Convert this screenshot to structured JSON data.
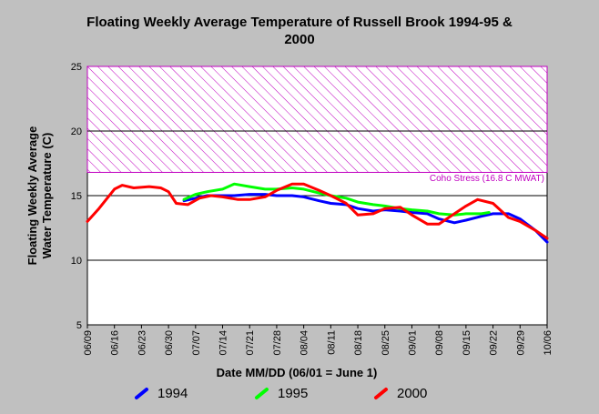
{
  "chart_data": {
    "type": "line",
    "title_line1": "Floating Weekly Average Temperature of Russell Brook 1994-95 &",
    "title_line2": "2000",
    "xlabel": "Date MM/DD (06/01 = June 1)",
    "ylabel_line1": "Floating Weekly Average",
    "ylabel_line2": "Water Temperature (C)",
    "ylim": [
      5,
      25
    ],
    "yticks": [
      5,
      10,
      15,
      20,
      25
    ],
    "grid_y": [
      10,
      15,
      20
    ],
    "x_start": "06/09",
    "x_end": "10/06",
    "xticks": [
      "06/09",
      "06/16",
      "06/23",
      "06/30",
      "07/07",
      "07/14",
      "07/21",
      "07/28",
      "08/04",
      "08/11",
      "08/18",
      "08/25",
      "09/01",
      "09/08",
      "09/15",
      "09/22",
      "09/29",
      "10/06"
    ],
    "annotation": {
      "label": "Coho Stress (16.8 C MWAT)",
      "y_low": 16.8,
      "y_high": 25,
      "x_from": "06/09",
      "x_to": "10/06",
      "color": "#c000c0"
    },
    "series": [
      {
        "name": "1994",
        "color": "#0000ff",
        "x": [
          "07/04",
          "07/07",
          "07/10",
          "07/14",
          "07/17",
          "07/21",
          "07/25",
          "07/28",
          "08/01",
          "08/04",
          "08/08",
          "08/11",
          "08/15",
          "08/18",
          "08/22",
          "08/25",
          "08/29",
          "09/01",
          "09/05",
          "09/08",
          "09/12",
          "09/15",
          "09/19",
          "09/22",
          "09/26",
          "09/29",
          "10/03",
          "10/06"
        ],
        "values": [
          14.6,
          14.8,
          15.0,
          15.0,
          15.0,
          15.1,
          15.1,
          15.0,
          15.0,
          14.9,
          14.6,
          14.4,
          14.3,
          14.0,
          13.8,
          13.9,
          13.8,
          13.7,
          13.6,
          13.2,
          12.9,
          13.1,
          13.4,
          13.6,
          13.6,
          13.2,
          12.3,
          11.4
        ]
      },
      {
        "name": "1995",
        "color": "#00ff00",
        "x": [
          "07/04",
          "07/07",
          "07/10",
          "07/14",
          "07/17",
          "07/21",
          "07/25",
          "07/28",
          "08/01",
          "08/04",
          "08/08",
          "08/11",
          "08/15",
          "08/18",
          "08/22",
          "08/25",
          "08/29",
          "09/01",
          "09/05",
          "09/08",
          "09/12",
          "09/15",
          "09/19",
          "09/21"
        ],
        "values": [
          14.7,
          15.1,
          15.3,
          15.5,
          15.9,
          15.7,
          15.5,
          15.5,
          15.6,
          15.5,
          15.2,
          15.0,
          14.8,
          14.5,
          14.3,
          14.2,
          14.0,
          13.9,
          13.8,
          13.6,
          13.5,
          13.6,
          13.6,
          13.7
        ]
      },
      {
        "name": "2000",
        "color": "#ff0000",
        "x": [
          "06/09",
          "06/12",
          "06/16",
          "06/18",
          "06/21",
          "06/25",
          "06/28",
          "06/30",
          "07/02",
          "07/05",
          "07/08",
          "07/11",
          "07/14",
          "07/18",
          "07/21",
          "07/25",
          "07/28",
          "08/01",
          "08/04",
          "08/08",
          "08/11",
          "08/15",
          "08/18",
          "08/22",
          "08/25",
          "08/29",
          "09/01",
          "09/05",
          "09/08",
          "09/11",
          "09/15",
          "09/18",
          "09/22",
          "09/26",
          "09/29",
          "10/03",
          "10/06"
        ],
        "values": [
          13.0,
          14.0,
          15.5,
          15.8,
          15.6,
          15.7,
          15.6,
          15.3,
          14.4,
          14.3,
          14.8,
          15.0,
          14.9,
          14.7,
          14.7,
          14.9,
          15.4,
          15.9,
          15.9,
          15.4,
          15.0,
          14.4,
          13.5,
          13.6,
          14.0,
          14.1,
          13.5,
          12.8,
          12.8,
          13.4,
          14.2,
          14.7,
          14.4,
          13.3,
          13.0,
          12.3,
          11.7
        ]
      }
    ],
    "legend_position": "bottom"
  }
}
